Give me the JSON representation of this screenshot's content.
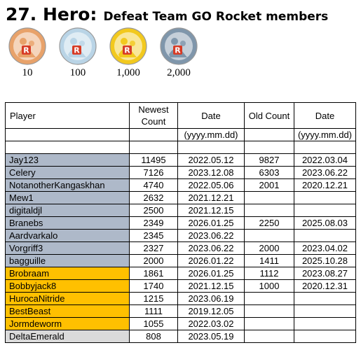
{
  "header": {
    "number_title": "27. Hero:",
    "subtitle": "Defeat Team GO Rocket members"
  },
  "medals": [
    {
      "label": "10",
      "tier": "bronze",
      "color": "#e8a26a"
    },
    {
      "label": "100",
      "tier": "silver",
      "color": "#b9d4e6"
    },
    {
      "label": "1,000",
      "tier": "gold",
      "color": "#f2c91e"
    },
    {
      "label": "2,000",
      "tier": "platinum",
      "color": "#7f96ab"
    }
  ],
  "medal_letter": "R",
  "table": {
    "headers": {
      "player": "Player",
      "newest_count": "Newest Count",
      "date1": "Date",
      "old_count": "Old Count",
      "date2": "Date"
    },
    "date_format": "(yyyy.mm.dd)",
    "tier_colors": {
      "silver": "#aeb9c9",
      "gold": "#ffc000",
      "grey": "#dadada"
    },
    "rows": [
      {
        "player": "Jay123",
        "newest": "11495",
        "date": "2022.05.12",
        "old": "9827",
        "old_date": "2022.03.04",
        "tier": "silver"
      },
      {
        "player": "Celery",
        "newest": "7126",
        "date": "2023.12.08",
        "old": "6303",
        "old_date": "2023.06.22",
        "tier": "silver"
      },
      {
        "player": "NotanotherKangaskhan",
        "newest": "4740",
        "date": "2022.05.06",
        "old": "2001",
        "old_date": "2020.12.21",
        "tier": "silver"
      },
      {
        "player": "Mew1",
        "newest": "2632",
        "date": "2021.12.21",
        "old": "",
        "old_date": "",
        "tier": "silver"
      },
      {
        "player": "digitaldjl",
        "newest": "2500",
        "date": "2021.12.15",
        "old": "",
        "old_date": "",
        "tier": "silver"
      },
      {
        "player": "Branebs",
        "newest": "2349",
        "date": "2026.01.25",
        "old": "2250",
        "old_date": "2025.08.03",
        "tier": "silver"
      },
      {
        "player": "Aardvarkalo",
        "newest": "2345",
        "date": "2023.06.22",
        "old": "",
        "old_date": "",
        "tier": "silver"
      },
      {
        "player": "Vorgriff3",
        "newest": "2327",
        "date": "2023.06.22",
        "old": "2000",
        "old_date": "2023.04.02",
        "tier": "silver"
      },
      {
        "player": "bagguille",
        "newest": "2000",
        "date": "2026.01.22",
        "old": "1411",
        "old_date": "2025.10.28",
        "tier": "silver"
      },
      {
        "player": "Brobraam",
        "newest": "1861",
        "date": "2026.01.25",
        "old": "1112",
        "old_date": "2023.08.27",
        "tier": "gold"
      },
      {
        "player": "Bobbyjack8",
        "newest": "1740",
        "date": "2021.12.15",
        "old": "1000",
        "old_date": "2020.12.31",
        "tier": "gold"
      },
      {
        "player": "HurocaNitride",
        "newest": "1215",
        "date": "2023.06.19",
        "old": "",
        "old_date": "",
        "tier": "gold"
      },
      {
        "player": "BestBeast",
        "newest": "1111",
        "date": "2019.12.05",
        "old": "",
        "old_date": "",
        "tier": "gold"
      },
      {
        "player": "Jormdeworm",
        "newest": "1055",
        "date": "2022.03.02",
        "old": "",
        "old_date": "",
        "tier": "gold"
      },
      {
        "player": "DeltaEmerald",
        "newest": "808",
        "date": "2023.05.19",
        "old": "",
        "old_date": "",
        "tier": "grey"
      }
    ]
  }
}
